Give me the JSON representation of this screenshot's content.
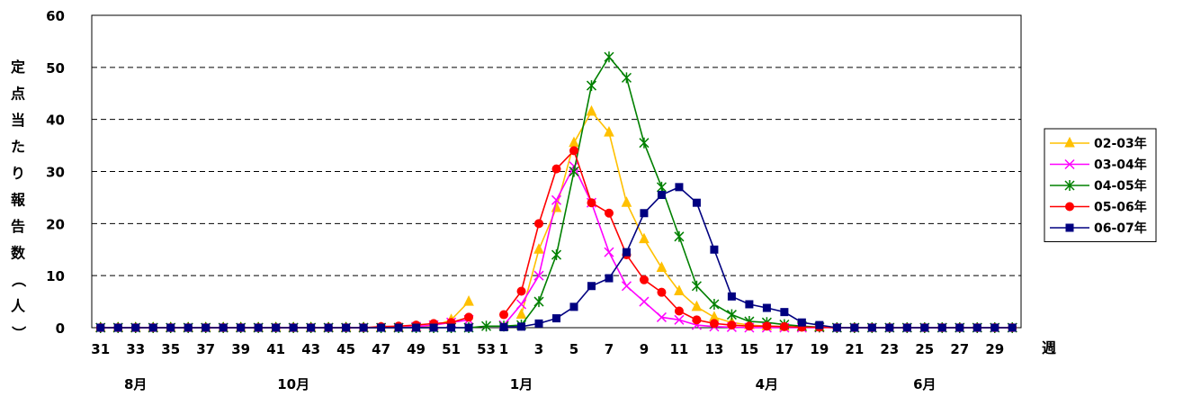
{
  "chart_data": {
    "type": "line",
    "ylabel": "定点当たり報告数（人）",
    "xlabel": "週",
    "ylim": [
      0,
      60
    ],
    "y_ticks": [
      0,
      10,
      20,
      30,
      40,
      50,
      60
    ],
    "grid": true,
    "legend_position": "right",
    "x": [
      "31",
      "32",
      "33",
      "34",
      "35",
      "36",
      "37",
      "38",
      "39",
      "40",
      "41",
      "42",
      "43",
      "44",
      "45",
      "46",
      "47",
      "48",
      "49",
      "50",
      "51",
      "52",
      "53",
      "1",
      "2",
      "3",
      "4",
      "5",
      "6",
      "7",
      "8",
      "9",
      "10",
      "11",
      "12",
      "13",
      "14",
      "15",
      "16",
      "17",
      "18",
      "19",
      "20",
      "21",
      "22",
      "23",
      "24",
      "25",
      "26",
      "27",
      "28",
      "29",
      "30"
    ],
    "x_tick_labels": [
      "31",
      "33",
      "35",
      "37",
      "39",
      "41",
      "43",
      "45",
      "47",
      "49",
      "51",
      "53",
      "1",
      "3",
      "5",
      "7",
      "9",
      "11",
      "13",
      "15",
      "17",
      "19",
      "21",
      "23",
      "25",
      "27",
      "29"
    ],
    "month_labels": [
      {
        "label": "8月",
        "week": "33"
      },
      {
        "label": "10月",
        "week": "42"
      },
      {
        "label": "1月",
        "week": "2"
      },
      {
        "label": "4月",
        "week": "16"
      },
      {
        "label": "6月",
        "week": "25"
      }
    ],
    "series": [
      {
        "name": "02-03年",
        "color": "#FFC000",
        "marker": "triangle",
        "values": [
          0,
          0,
          0,
          0,
          0,
          0,
          0,
          0,
          0,
          0,
          0,
          0,
          0,
          0,
          0,
          0,
          0,
          0,
          0.1,
          0.3,
          1.5,
          5,
          null,
          null,
          2.5,
          15,
          23,
          35.5,
          41.5,
          37.5,
          24,
          17,
          11.5,
          7,
          4,
          2,
          1,
          0.5,
          0.3,
          0.2,
          0.1,
          0.1,
          null,
          null,
          null,
          null,
          null,
          null,
          null,
          null,
          null,
          null,
          null
        ]
      },
      {
        "name": "03-04年",
        "color": "#FF00FF",
        "marker": "x",
        "values": [
          0,
          0,
          0,
          0,
          0,
          0,
          0,
          0,
          0,
          0,
          0,
          0,
          0,
          0,
          0,
          0,
          0,
          0,
          0.2,
          0.5,
          1,
          1.5,
          null,
          0.5,
          4.5,
          10,
          24.5,
          31,
          24,
          14.5,
          8,
          5,
          2,
          1.5,
          0.5,
          0.2,
          0.1,
          0,
          0,
          0,
          0,
          0,
          0,
          0,
          0,
          0,
          0,
          0,
          0,
          0,
          0,
          0,
          0
        ]
      },
      {
        "name": "04-05年",
        "color": "#008000",
        "marker": "asterisk",
        "values": [
          0,
          0,
          0,
          0,
          0,
          0,
          0,
          0,
          0,
          0,
          0,
          0,
          0,
          0,
          0,
          0,
          0,
          0,
          0,
          0,
          0,
          0,
          0.3,
          0.3,
          0.5,
          5,
          14,
          30,
          46.5,
          52,
          48,
          35.5,
          27,
          17.5,
          8,
          4.5,
          2.5,
          1.2,
          1,
          0.6,
          0.3,
          0.1,
          0,
          0,
          0,
          0,
          0,
          0,
          0,
          0,
          0,
          0,
          0
        ]
      },
      {
        "name": "05-06年",
        "color": "#FF0000",
        "marker": "circle",
        "values": [
          0,
          0,
          0,
          0,
          0,
          0,
          0,
          0,
          0,
          0,
          0,
          0,
          0,
          0,
          0,
          0,
          0.2,
          0.3,
          0.5,
          0.8,
          1,
          2,
          null,
          2.5,
          7,
          20,
          30.5,
          34,
          24,
          22,
          14,
          9.2,
          6.8,
          3.2,
          1.5,
          0.8,
          0.5,
          0.3,
          0.3,
          0.2,
          0.1,
          0.1,
          0,
          0,
          0,
          0,
          0,
          0,
          0,
          0,
          0,
          0,
          0
        ]
      },
      {
        "name": "06-07年",
        "color": "#000080",
        "marker": "square",
        "values": [
          0,
          0,
          0,
          0,
          0,
          0,
          0,
          0,
          0,
          0,
          0,
          0,
          0,
          0,
          0,
          0,
          0,
          0,
          0,
          0,
          0,
          0,
          null,
          0.1,
          0.2,
          0.8,
          1.8,
          4,
          8,
          9.5,
          14.5,
          22,
          25.5,
          27,
          24,
          15,
          6,
          4.5,
          3.8,
          3,
          1,
          0.5,
          0,
          0,
          0,
          0,
          0,
          0,
          0,
          0,
          0,
          0,
          0
        ]
      }
    ]
  }
}
